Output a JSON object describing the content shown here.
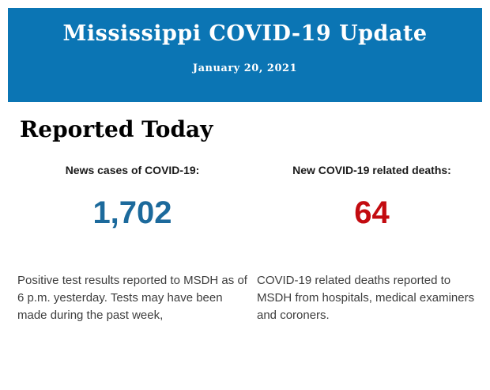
{
  "banner": {
    "title": "Mississippi COVID-19 Update",
    "date": "January 20, 2021",
    "bg_color": "#0b75b4",
    "text_color": "#ffffff"
  },
  "section": {
    "heading": "Reported Today"
  },
  "stats": [
    {
      "label": "News cases of COVID-19:",
      "value": "1,702",
      "value_color": "#1c6a9c",
      "description": "Positive test results reported to MSDH as of 6 p.m. yesterday. Tests may have been made during the past week,"
    },
    {
      "label": "New COVID-19 related deaths:",
      "value": "64",
      "value_color": "#c30b10",
      "description": "COVID-19 related deaths reported to MSDH from hospitals, medical examiners and coroners."
    }
  ]
}
